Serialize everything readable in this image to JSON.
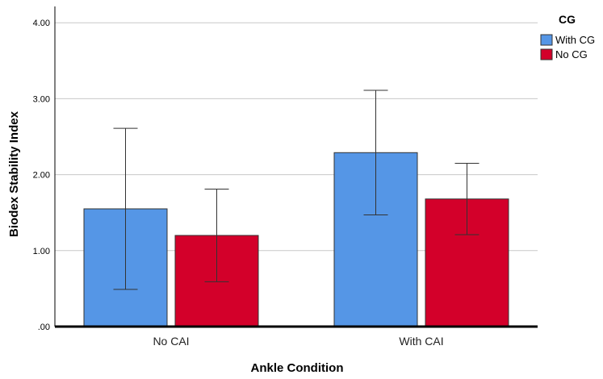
{
  "chart_data": {
    "type": "bar",
    "title": "",
    "xlabel": "Ankle Condition",
    "ylabel": "Biodex Stability Index",
    "categories": [
      "No CAI",
      "With CAI"
    ],
    "ylim": [
      0,
      4.2
    ],
    "yticks": [
      0,
      1,
      2,
      3,
      4
    ],
    "ytick_labels": [
      ".00",
      "1.00",
      "2.00",
      "3.00",
      "4.00"
    ],
    "grid": true,
    "legend": {
      "title": "CG",
      "position": "top-right"
    },
    "series": [
      {
        "name": "With CG",
        "color": "#5596e6",
        "values": [
          1.55,
          2.29
        ],
        "err_low": [
          0.49,
          1.47
        ],
        "err_high": [
          2.61,
          3.11
        ]
      },
      {
        "name": "No CG",
        "color": "#d3002a",
        "values": [
          1.2,
          1.68
        ],
        "err_low": [
          0.59,
          1.21
        ],
        "err_high": [
          1.81,
          2.15
        ]
      }
    ]
  }
}
